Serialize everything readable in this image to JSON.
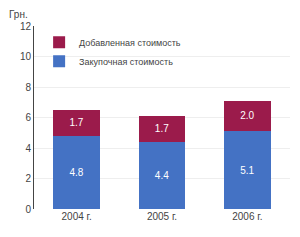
{
  "chart_data": {
    "type": "bar",
    "stacked": true,
    "ylabel": "Грн.",
    "categories": [
      "2004 г.",
      "2005 г.",
      "2006 г."
    ],
    "series": [
      {
        "name": "Закупочная стоимость",
        "color": "#4472C4",
        "values": [
          4.8,
          4.4,
          5.1
        ],
        "value_labels": [
          "4.8",
          "4.4",
          "5.1"
        ]
      },
      {
        "name": "Добавленная стоимость",
        "color": "#9B1B4B",
        "values": [
          1.7,
          1.7,
          2.0
        ],
        "value_labels": [
          "1.7",
          "1.7",
          "2.0"
        ]
      }
    ],
    "ylim": [
      0,
      12
    ],
    "yticks": [
      0,
      2,
      4,
      6,
      8,
      10,
      12
    ],
    "grid": true,
    "legend": "upper left",
    "data_labels": true
  }
}
